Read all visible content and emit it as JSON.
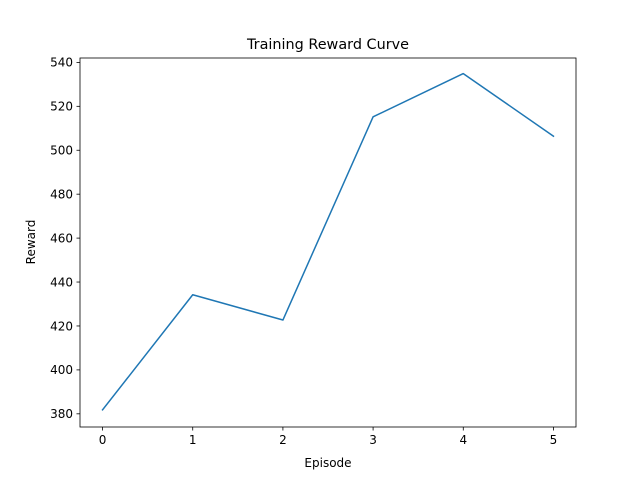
{
  "chart_data": {
    "type": "line",
    "title": "Training Reward Curve",
    "xlabel": "Episode",
    "ylabel": "Reward",
    "x": [
      0,
      1,
      2,
      3,
      4,
      5
    ],
    "xticks": [
      0,
      1,
      2,
      3,
      4,
      5
    ],
    "yticks": [
      380,
      400,
      420,
      440,
      460,
      480,
      500,
      520,
      540
    ],
    "xlim": [
      -0.25,
      5.25
    ],
    "ylim": [
      374,
      542
    ],
    "grid": false,
    "series": [
      {
        "color": "#1f77b4",
        "values": [
          381.8,
          434.2,
          422.7,
          515.2,
          534.9,
          506.4
        ]
      }
    ]
  }
}
